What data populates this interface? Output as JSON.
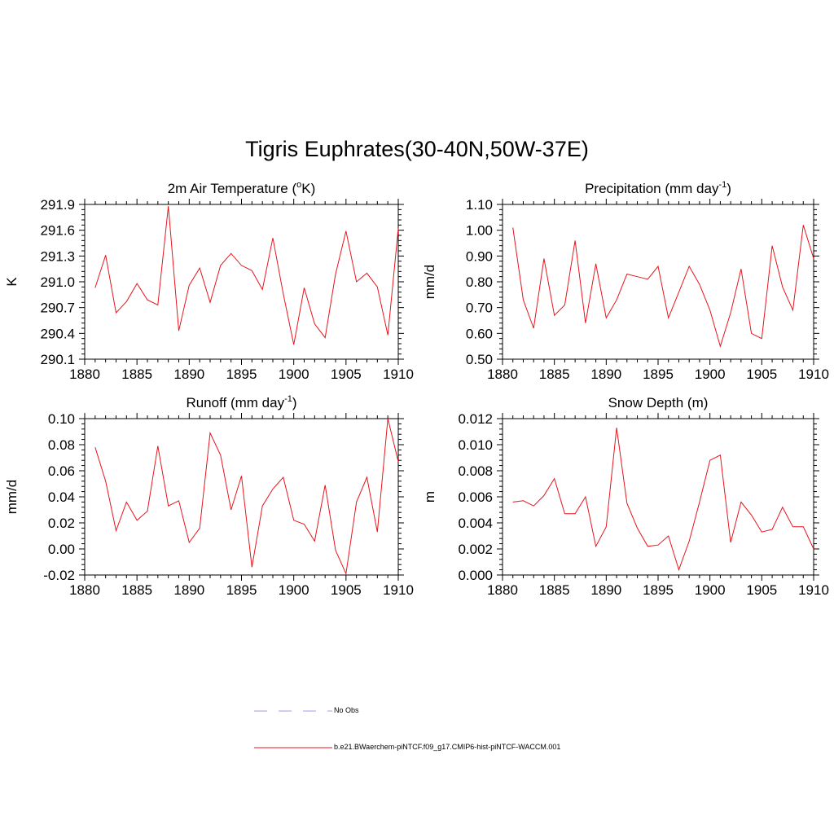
{
  "title": "Tigris Euphrates(30-40N,50W-37E)",
  "colors": {
    "model": "#e8141c",
    "obs": "#9c9cf0",
    "axis": "#000000"
  },
  "legend": [
    {
      "label": "No Obs",
      "style": "dashed",
      "color": "#9c9cf0"
    },
    {
      "label": "b.e21.BWaerchem-piNTCF.f09_g17.CMIP6-hist-piNTCF-WACCM.001",
      "style": "solid",
      "color": "#e8141c"
    }
  ],
  "chart_data": [
    {
      "type": "line",
      "title": "2m Air Temperature (",
      "title_sup": "o",
      "title_after": "K)",
      "ylabel": "K",
      "xlim": [
        1880,
        1910
      ],
      "ylim": [
        290.1,
        291.9
      ],
      "yticks": [
        290.1,
        290.4,
        290.7,
        291.0,
        291.3,
        291.6,
        291.9
      ],
      "ytick_labels": [
        "290.1",
        "290.4",
        "290.7",
        "291.0",
        "291.3",
        "291.6",
        "291.9"
      ],
      "xticks": [
        1880,
        1885,
        1890,
        1895,
        1900,
        1905,
        1910
      ],
      "x": [
        1881,
        1882,
        1883,
        1884,
        1885,
        1886,
        1887,
        1888,
        1889,
        1890,
        1891,
        1892,
        1893,
        1894,
        1895,
        1896,
        1897,
        1898,
        1899,
        1900,
        1901,
        1902,
        1903,
        1904,
        1905,
        1906,
        1907,
        1908,
        1909,
        1910
      ],
      "series": [
        {
          "values": [
            290.93,
            291.31,
            290.64,
            290.77,
            290.98,
            290.79,
            290.73,
            291.88,
            290.43,
            290.96,
            291.16,
            290.76,
            291.19,
            291.33,
            291.19,
            291.13,
            290.91,
            291.51,
            290.86,
            290.27,
            290.93,
            290.51,
            290.35,
            291.09,
            291.59,
            291.0,
            291.1,
            290.94,
            290.38,
            291.62
          ]
        }
      ]
    },
    {
      "type": "line",
      "title": "Precipitation (mm day",
      "title_sup": "-1",
      "title_after": ")",
      "ylabel": "mm/d",
      "xlim": [
        1880,
        1910
      ],
      "ylim": [
        0.5,
        1.1
      ],
      "yticks": [
        0.5,
        0.6,
        0.7,
        0.8,
        0.9,
        1.0,
        1.1
      ],
      "ytick_labels": [
        "0.50",
        "0.60",
        "0.70",
        "0.80",
        "0.90",
        "1.00",
        "1.10"
      ],
      "xticks": [
        1880,
        1885,
        1890,
        1895,
        1900,
        1905,
        1910
      ],
      "x": [
        1881,
        1882,
        1883,
        1884,
        1885,
        1886,
        1887,
        1888,
        1889,
        1890,
        1891,
        1892,
        1893,
        1894,
        1895,
        1896,
        1897,
        1898,
        1899,
        1900,
        1901,
        1902,
        1903,
        1904,
        1905,
        1906,
        1907,
        1908,
        1909,
        1910
      ],
      "series": [
        {
          "values": [
            1.01,
            0.73,
            0.62,
            0.89,
            0.67,
            0.71,
            0.96,
            0.64,
            0.87,
            0.66,
            0.73,
            0.83,
            0.82,
            0.81,
            0.86,
            0.66,
            0.76,
            0.86,
            0.79,
            0.69,
            0.55,
            0.68,
            0.85,
            0.6,
            0.58,
            0.94,
            0.78,
            0.69,
            1.02,
            0.89
          ]
        }
      ]
    },
    {
      "type": "line",
      "title": "Runoff (mm day",
      "title_sup": "-1",
      "title_after": ")",
      "ylabel": "mm/d",
      "xlim": [
        1880,
        1910
      ],
      "ylim": [
        -0.02,
        0.1
      ],
      "yticks": [
        -0.02,
        0.0,
        0.02,
        0.04,
        0.06,
        0.08,
        0.1
      ],
      "ytick_labels": [
        "-0.02",
        "0.00",
        "0.02",
        "0.04",
        "0.06",
        "0.08",
        "0.10"
      ],
      "xticks": [
        1880,
        1885,
        1890,
        1895,
        1900,
        1905,
        1910
      ],
      "x": [
        1881,
        1882,
        1883,
        1884,
        1885,
        1886,
        1887,
        1888,
        1889,
        1890,
        1891,
        1892,
        1893,
        1894,
        1895,
        1896,
        1897,
        1898,
        1899,
        1900,
        1901,
        1902,
        1903,
        1904,
        1905,
        1906,
        1907,
        1908,
        1909,
        1910
      ],
      "series": [
        {
          "values": [
            0.078,
            0.052,
            0.014,
            0.036,
            0.022,
            0.029,
            0.079,
            0.033,
            0.037,
            0.005,
            0.016,
            0.089,
            0.072,
            0.03,
            0.056,
            -0.014,
            0.033,
            0.046,
            0.055,
            0.022,
            0.019,
            0.006,
            0.049,
            -0.001,
            -0.019,
            0.036,
            0.055,
            0.013,
            0.1,
            0.067
          ]
        }
      ]
    },
    {
      "type": "line",
      "title": "Snow Depth (m)",
      "title_sup": "",
      "title_after": "",
      "ylabel": "m",
      "xlim": [
        1880,
        1910
      ],
      "ylim": [
        0.0,
        0.012
      ],
      "yticks": [
        0.0,
        0.002,
        0.004,
        0.006,
        0.008,
        0.01,
        0.012
      ],
      "ytick_labels": [
        "0.000",
        "0.002",
        "0.004",
        "0.006",
        "0.008",
        "0.010",
        "0.012"
      ],
      "xticks": [
        1880,
        1885,
        1890,
        1895,
        1900,
        1905,
        1910
      ],
      "x": [
        1881,
        1882,
        1883,
        1884,
        1885,
        1886,
        1887,
        1888,
        1889,
        1890,
        1891,
        1892,
        1893,
        1894,
        1895,
        1896,
        1897,
        1898,
        1899,
        1900,
        1901,
        1902,
        1903,
        1904,
        1905,
        1906,
        1907,
        1908,
        1909,
        1910
      ],
      "series": [
        {
          "values": [
            0.0056,
            0.0057,
            0.0053,
            0.0061,
            0.0074,
            0.0047,
            0.0047,
            0.006,
            0.0022,
            0.0037,
            0.0113,
            0.0055,
            0.0036,
            0.0022,
            0.0023,
            0.003,
            0.0004,
            0.0026,
            0.0056,
            0.0088,
            0.0092,
            0.0025,
            0.0056,
            0.0046,
            0.0033,
            0.0035,
            0.0052,
            0.0037,
            0.0037,
            0.002
          ]
        }
      ]
    }
  ]
}
